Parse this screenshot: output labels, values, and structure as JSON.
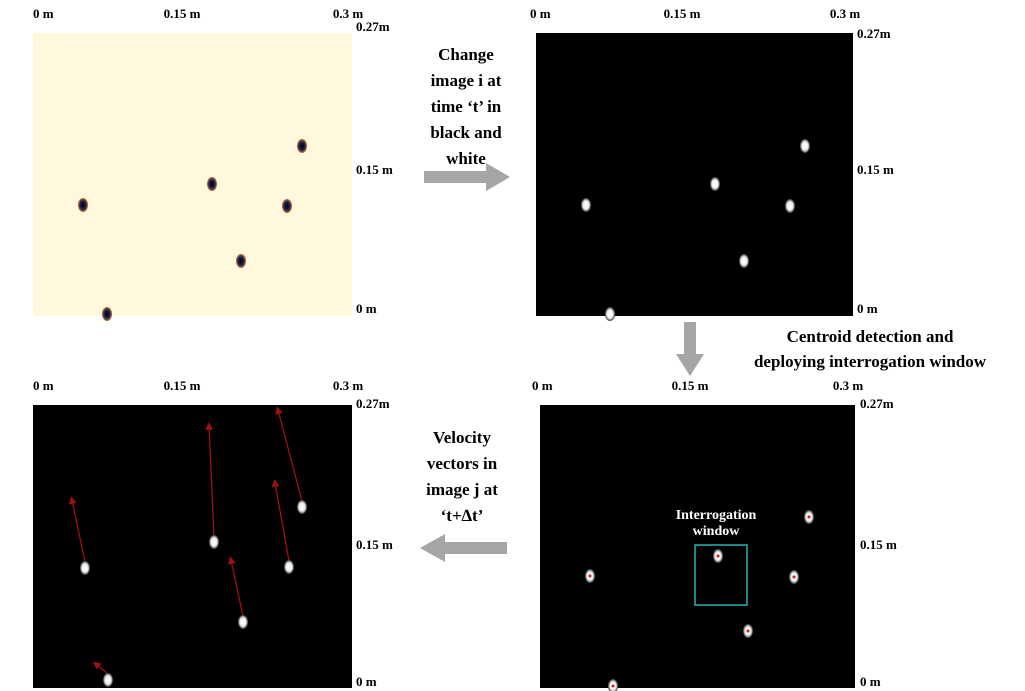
{
  "panels": [
    {
      "top_labels": [
        "0 m",
        "0.15 m",
        "0.3 m"
      ],
      "right_labels": [
        "0.27m",
        "0.15 m",
        "0 m"
      ]
    },
    {
      "top_labels": [
        "0 m",
        "0.15 m",
        "0.3 m"
      ],
      "right_labels": [
        "0.27m",
        "0.15 m",
        "0 m"
      ]
    },
    {
      "top_labels": [
        "0 m",
        "0.15 m",
        "0.3 m"
      ],
      "right_labels": [
        "0.27m",
        "0.15 m",
        "0 m"
      ]
    },
    {
      "top_labels": [
        "0 m",
        "0.15 m",
        "0.3 m"
      ],
      "right_labels": [
        "0.27m",
        "0.15 m",
        "0 m"
      ]
    }
  ],
  "steps": [
    {
      "lines": [
        "Change",
        "image i at",
        "time ‘t’ in",
        "black and",
        "white"
      ]
    },
    {
      "lines": [
        "Centroid detection and",
        "deploying interrogation window"
      ]
    },
    {
      "lines": [
        "Velocity",
        "vectors in",
        "image j at",
        "‘t+∆t’"
      ]
    }
  ],
  "window_label": [
    "Interrogation",
    "window"
  ]
}
